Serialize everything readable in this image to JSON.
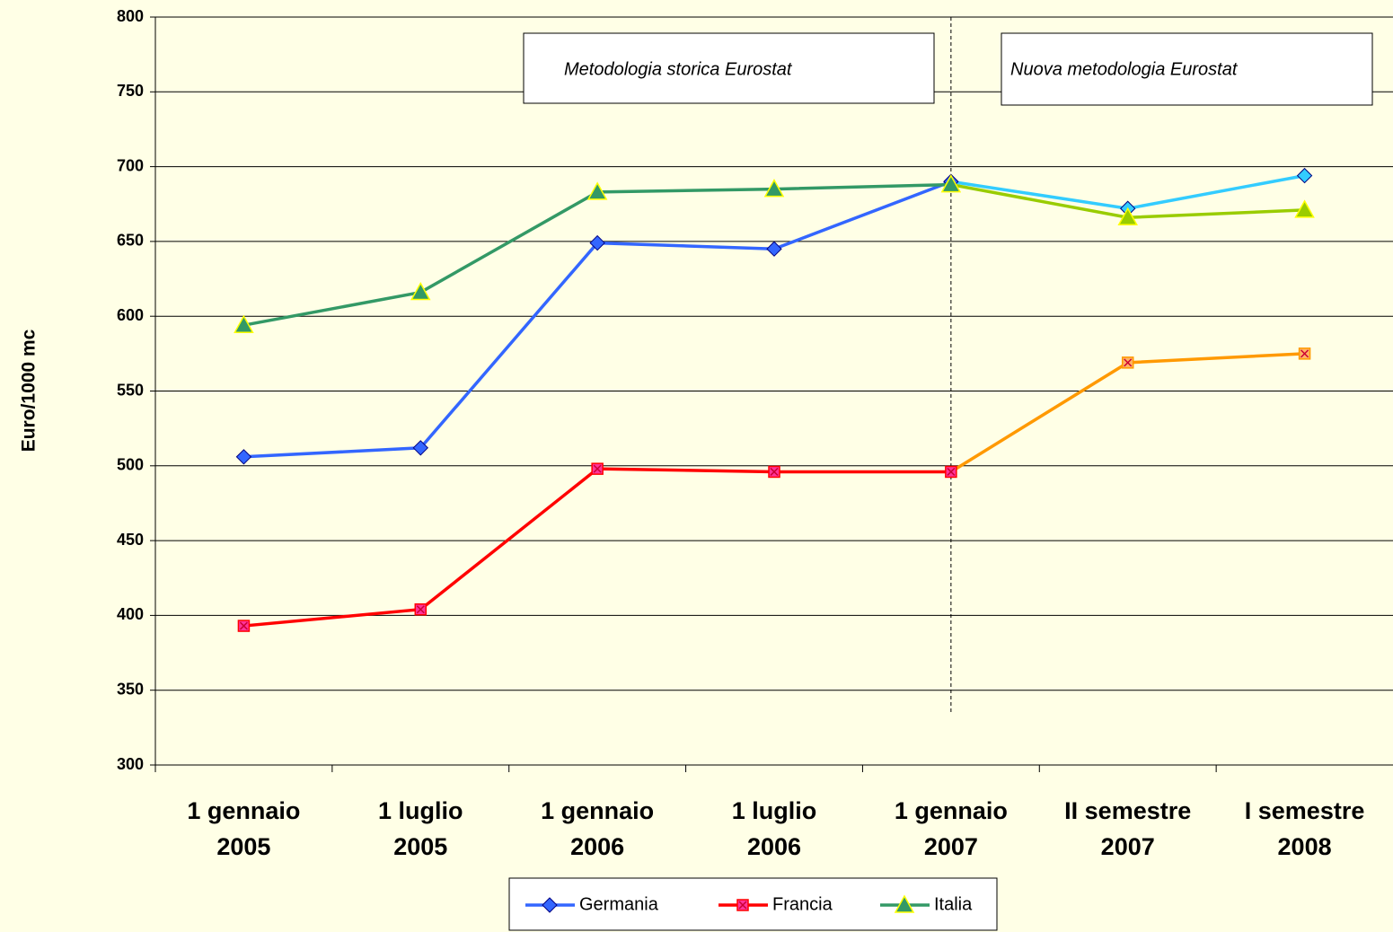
{
  "chart_data": {
    "type": "line",
    "y_label": "Euro/1000 mc",
    "categories": [
      "1 gennaio\n2005",
      "1 luglio\n2005",
      "1 gennaio\n2006",
      "1 luglio\n2006",
      "1 gennaio\n2007",
      "II semestre\n2007",
      "I semestre\n2008"
    ],
    "series": [
      {
        "name": "Germania",
        "color": "#3366FF",
        "color2": "#33CCFF",
        "marker": "diamond",
        "values": [
          506,
          512,
          649,
          645,
          690,
          672,
          694
        ]
      },
      {
        "name": "Francia",
        "color": "#FF0000",
        "color2": "#FF9900",
        "marker": "square",
        "values": [
          393,
          404,
          498,
          496,
          496,
          569,
          575
        ]
      },
      {
        "name": "Italia",
        "color": "#339966",
        "color2": "#99CC00",
        "marker": "triangle",
        "values": [
          594,
          616,
          683,
          685,
          688,
          666,
          671
        ]
      }
    ],
    "divider_index": 4,
    "annotations": [
      "Metodologia storica Eurostat",
      "Nuova metodologia Eurostat"
    ],
    "ylim": [
      300,
      800
    ],
    "yticks": [
      300,
      350,
      400,
      450,
      500,
      550,
      600,
      650,
      700,
      750,
      800
    ],
    "grid": true,
    "legend": "bottom"
  }
}
